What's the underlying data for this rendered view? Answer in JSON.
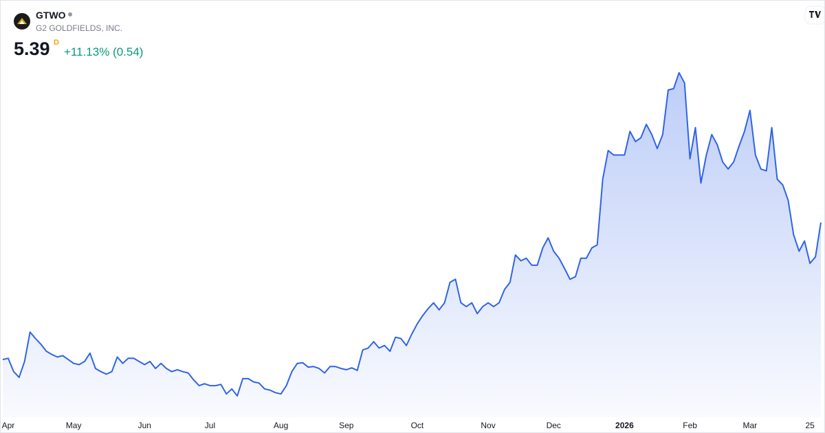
{
  "header": {
    "symbol": "GTWO",
    "name": "G2 GOLDFIELDS, INC.",
    "price": "5.39",
    "interval": "D",
    "change": "+11.13% (0.54)"
  },
  "chart_data": {
    "type": "area",
    "color": "#2f63e8",
    "ylim": [
      2.4,
      7.9
    ],
    "categories": [
      null,
      "Apr",
      null,
      null,
      null,
      null,
      null,
      null,
      null,
      null,
      null,
      null,
      null,
      "May",
      null,
      null,
      null,
      null,
      null,
      null,
      null,
      null,
      null,
      null,
      null,
      null,
      "Jun",
      null,
      null,
      null,
      null,
      null,
      null,
      null,
      null,
      null,
      null,
      null,
      "Jul",
      null,
      null,
      null,
      null,
      null,
      null,
      null,
      null,
      null,
      null,
      null,
      null,
      "Aug",
      null,
      null,
      null,
      null,
      null,
      null,
      null,
      null,
      null,
      null,
      null,
      "Sep",
      null,
      null,
      null,
      null,
      null,
      null,
      null,
      null,
      null,
      null,
      null,
      null,
      "Oct",
      null,
      null,
      null,
      null,
      null,
      null,
      null,
      null,
      null,
      null,
      null,
      null,
      "Nov",
      null,
      null,
      null,
      null,
      null,
      null,
      null,
      null,
      null,
      null,
      null,
      "Dec",
      null,
      null,
      null,
      null,
      null,
      null,
      null,
      null,
      null,
      null,
      null,
      null,
      "2026",
      null,
      null,
      null,
      null,
      null,
      null,
      null,
      null,
      null,
      null,
      null,
      "Feb",
      null,
      null,
      null,
      null,
      null,
      null,
      null,
      null,
      null,
      null,
      "Mar",
      null,
      null,
      null,
      null,
      null,
      null,
      null,
      null,
      null,
      null,
      "25",
      null,
      null
    ],
    "values": [
      3.24,
      3.26,
      3.05,
      2.96,
      3.21,
      3.67,
      3.57,
      3.48,
      3.37,
      3.32,
      3.28,
      3.3,
      3.24,
      3.18,
      3.16,
      3.21,
      3.34,
      3.1,
      3.05,
      3.01,
      3.05,
      3.28,
      3.18,
      3.26,
      3.26,
      3.21,
      3.16,
      3.21,
      3.1,
      3.18,
      3.1,
      3.05,
      3.08,
      3.05,
      3.03,
      2.92,
      2.83,
      2.86,
      2.83,
      2.83,
      2.85,
      2.7,
      2.78,
      2.67,
      2.94,
      2.94,
      2.89,
      2.87,
      2.78,
      2.76,
      2.72,
      2.7,
      2.83,
      3.05,
      3.18,
      3.19,
      3.12,
      3.13,
      3.1,
      3.03,
      3.13,
      3.13,
      3.1,
      3.08,
      3.11,
      3.07,
      3.39,
      3.42,
      3.52,
      3.42,
      3.46,
      3.37,
      3.59,
      3.57,
      3.46,
      3.64,
      3.8,
      3.93,
      4.04,
      4.13,
      4.02,
      4.13,
      4.45,
      4.5,
      4.13,
      4.07,
      4.13,
      3.96,
      4.07,
      4.13,
      4.07,
      4.13,
      4.34,
      4.45,
      4.88,
      4.79,
      4.83,
      4.72,
      4.72,
      4.99,
      5.15,
      4.94,
      4.83,
      4.67,
      4.5,
      4.54,
      4.83,
      4.83,
      4.99,
      5.04,
      6.07,
      6.52,
      6.45,
      6.45,
      6.45,
      6.82,
      6.66,
      6.72,
      6.93,
      6.77,
      6.55,
      6.77,
      7.47,
      7.49,
      7.74,
      7.58,
      6.39,
      6.88,
      6.01,
      6.45,
      6.77,
      6.61,
      6.34,
      6.23,
      6.34,
      6.59,
      6.82,
      7.15,
      6.45,
      6.23,
      6.2,
      6.88,
      6.07,
      5.98,
      5.74,
      5.2,
      4.94,
      5.1,
      4.75,
      4.85,
      5.39
    ]
  }
}
